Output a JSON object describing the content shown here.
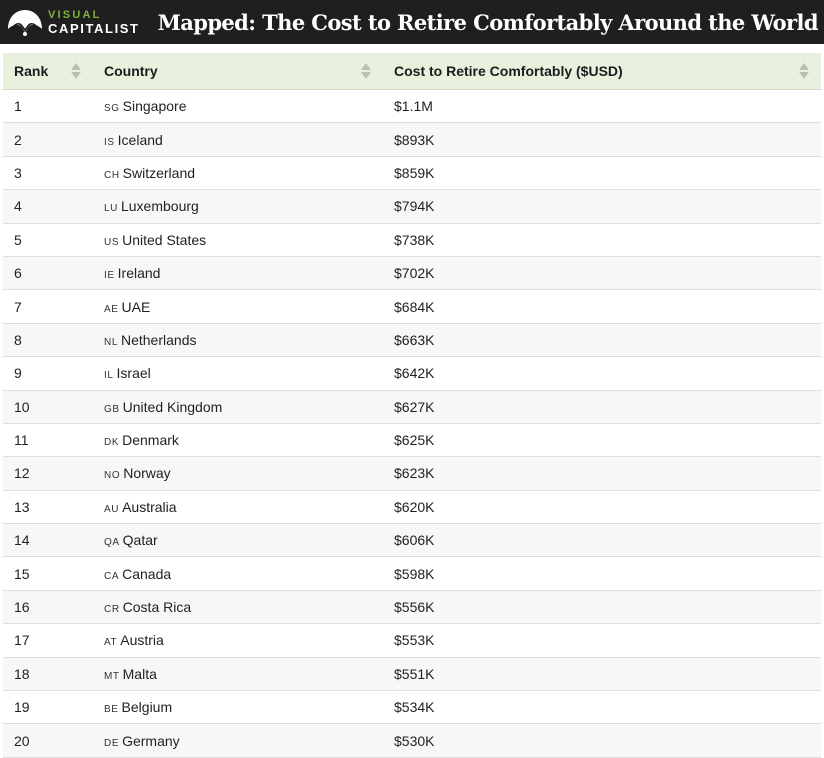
{
  "header": {
    "logo": {
      "line1": "VISUAL",
      "line2": "CAPITALIST"
    },
    "title": "Mapped: The Cost to Retire Comfortably Around the World"
  },
  "colors": {
    "header_bg": "#1f1f1f",
    "logo_accent": "#7fb241",
    "table_header_bg": "#e7f1de"
  },
  "table": {
    "columns": [
      "Rank",
      "Country",
      "Cost to Retire Comfortably ($USD)"
    ],
    "rows": [
      {
        "rank": "1",
        "code": "SG",
        "country": "Singapore",
        "cost": "$1.1M"
      },
      {
        "rank": "2",
        "code": "IS",
        "country": "Iceland",
        "cost": "$893K"
      },
      {
        "rank": "3",
        "code": "CH",
        "country": "Switzerland",
        "cost": "$859K"
      },
      {
        "rank": "4",
        "code": "LU",
        "country": "Luxembourg",
        "cost": "$794K"
      },
      {
        "rank": "5",
        "code": "US",
        "country": "United States",
        "cost": "$738K"
      },
      {
        "rank": "6",
        "code": "IE",
        "country": "Ireland",
        "cost": "$702K"
      },
      {
        "rank": "7",
        "code": "AE",
        "country": "UAE",
        "cost": "$684K"
      },
      {
        "rank": "8",
        "code": "NL",
        "country": "Netherlands",
        "cost": "$663K"
      },
      {
        "rank": "9",
        "code": "IL",
        "country": "Israel",
        "cost": "$642K"
      },
      {
        "rank": "10",
        "code": "GB",
        "country": "United Kingdom",
        "cost": "$627K"
      },
      {
        "rank": "11",
        "code": "DK",
        "country": "Denmark",
        "cost": "$625K"
      },
      {
        "rank": "12",
        "code": "NO",
        "country": "Norway",
        "cost": "$623K"
      },
      {
        "rank": "13",
        "code": "AU",
        "country": "Australia",
        "cost": "$620K"
      },
      {
        "rank": "14",
        "code": "QA",
        "country": "Qatar",
        "cost": "$606K"
      },
      {
        "rank": "15",
        "code": "CA",
        "country": "Canada",
        "cost": "$598K"
      },
      {
        "rank": "16",
        "code": "CR",
        "country": "Costa Rica",
        "cost": "$556K"
      },
      {
        "rank": "17",
        "code": "AT",
        "country": "Austria",
        "cost": "$553K"
      },
      {
        "rank": "18",
        "code": "MT",
        "country": "Malta",
        "cost": "$551K"
      },
      {
        "rank": "19",
        "code": "BE",
        "country": "Belgium",
        "cost": "$534K"
      },
      {
        "rank": "20",
        "code": "DE",
        "country": "Germany",
        "cost": "$530K"
      }
    ]
  }
}
